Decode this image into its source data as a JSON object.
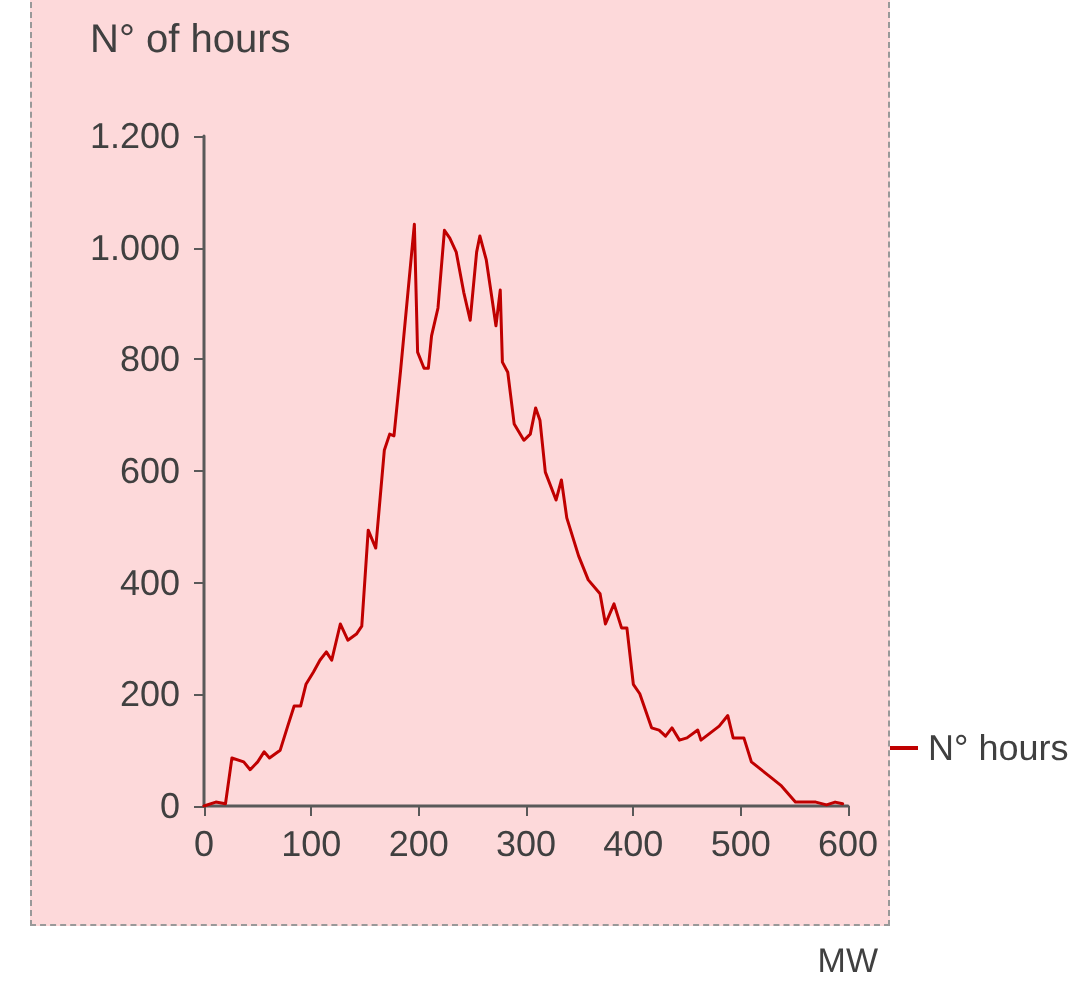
{
  "chart_data": {
    "type": "line",
    "xlabel": "MW",
    "ylabel": "N° of hours",
    "series": [
      {
        "name": "N° hours",
        "color": "#c00000",
        "x": [
          0,
          11,
          20,
          26,
          37,
          43,
          50,
          56,
          61,
          71,
          78,
          84,
          90,
          95,
          102,
          108,
          114,
          119,
          127,
          134,
          142,
          147,
          153,
          160,
          168,
          173,
          177,
          183,
          190,
          196,
          199,
          205,
          209,
          212,
          218,
          224,
          229,
          235,
          242,
          248,
          254,
          257,
          263,
          268,
          272,
          276,
          278,
          283,
          289,
          298,
          304,
          309,
          313,
          318,
          328,
          333,
          338,
          349,
          358,
          369,
          374,
          382,
          389,
          394,
          400,
          406,
          417,
          424,
          430,
          436,
          443,
          450,
          460,
          463,
          480,
          488,
          493,
          500,
          503,
          510,
          529,
          538,
          551,
          570,
          580,
          588,
          595
        ],
        "values": [
          0,
          7,
          4,
          86,
          79,
          65,
          79,
          97,
          86,
          100,
          143,
          179,
          179,
          218,
          240,
          261,
          276,
          261,
          326,
          297,
          308,
          322,
          494,
          462,
          637,
          666,
          663,
          777,
          920,
          1042,
          813,
          784,
          784,
          842,
          892,
          1031,
          1017,
          992,
          920,
          870,
          992,
          1021,
          978,
          913,
          860,
          924,
          795,
          777,
          684,
          655,
          666,
          713,
          691,
          598,
          548,
          584,
          516,
          448,
          405,
          380,
          326,
          362,
          319,
          319,
          218,
          201,
          140,
          136,
          125,
          140,
          118,
          122,
          136,
          118,
          143,
          162,
          122,
          122,
          122,
          79,
          50,
          36,
          7,
          7,
          2,
          7,
          4
        ]
      }
    ],
    "xlim": [
      0,
      600
    ],
    "xticks": [
      0,
      100,
      200,
      300,
      400,
      500,
      600
    ],
    "ylim": [
      0,
      1200
    ],
    "yticks": [
      0,
      200,
      400,
      600,
      800,
      {
        "value": 1000,
        "label": "1.000"
      },
      {
        "value": 1200,
        "label": "1.200"
      }
    ],
    "grid": false,
    "legend": "right",
    "marker": "none",
    "line_style": "solid"
  }
}
